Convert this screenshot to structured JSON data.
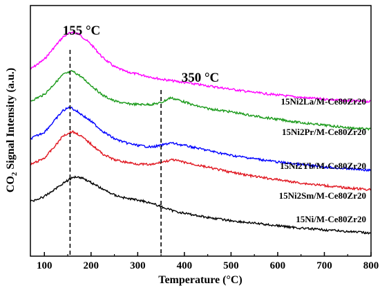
{
  "chart_data": {
    "type": "line",
    "xlabel": "Temperature (°C)",
    "ylabel": "CO2 Signal Intensity (a.u.)",
    "xlim": [
      70,
      800
    ],
    "xticks": [
      100,
      200,
      300,
      400,
      500,
      600,
      700,
      800
    ],
    "yticks": "none",
    "grid": false,
    "legend": "inline labels at right",
    "annotations": [
      {
        "text": "155 °C",
        "x": 155,
        "style": "dashed vertical line"
      },
      {
        "text": "350 °C",
        "x": 350,
        "style": "dashed vertical line"
      }
    ],
    "series": [
      {
        "name": "15Ni2La/M-Ce80Zr20",
        "color": "#ff00ff",
        "points": [
          [
            70,
            0.55
          ],
          [
            100,
            0.67
          ],
          [
            125,
            0.84
          ],
          [
            140,
            0.94
          ],
          [
            160,
            1.0
          ],
          [
            175,
            0.97
          ],
          [
            200,
            0.85
          ],
          [
            225,
            0.69
          ],
          [
            250,
            0.58
          ],
          [
            275,
            0.52
          ],
          [
            300,
            0.49
          ],
          [
            350,
            0.43
          ],
          [
            400,
            0.39
          ],
          [
            450,
            0.35
          ],
          [
            500,
            0.31
          ],
          [
            550,
            0.27
          ],
          [
            600,
            0.24
          ],
          [
            650,
            0.21
          ],
          [
            700,
            0.19
          ],
          [
            750,
            0.17
          ],
          [
            800,
            0.16
          ]
        ]
      },
      {
        "name": "15Ni2Pr/M-Ce80Zr20",
        "color": "#1a9a1a",
        "points": [
          [
            70,
            0.6
          ],
          [
            100,
            0.68
          ],
          [
            125,
            0.83
          ],
          [
            140,
            0.92
          ],
          [
            160,
            0.96
          ],
          [
            175,
            0.91
          ],
          [
            200,
            0.79
          ],
          [
            225,
            0.67
          ],
          [
            250,
            0.6
          ],
          [
            275,
            0.57
          ],
          [
            300,
            0.56
          ],
          [
            330,
            0.56
          ],
          [
            350,
            0.58
          ],
          [
            370,
            0.64
          ],
          [
            390,
            0.61
          ],
          [
            420,
            0.55
          ],
          [
            450,
            0.51
          ],
          [
            500,
            0.47
          ],
          [
            550,
            0.42
          ],
          [
            600,
            0.38
          ],
          [
            650,
            0.34
          ],
          [
            700,
            0.31
          ],
          [
            750,
            0.28
          ],
          [
            800,
            0.26
          ]
        ]
      },
      {
        "name": "15Ni2Yb/M-Ce80Zr20",
        "color": "#0000ff",
        "points": [
          [
            70,
            0.58
          ],
          [
            100,
            0.66
          ],
          [
            125,
            0.82
          ],
          [
            140,
            0.92
          ],
          [
            155,
            0.96
          ],
          [
            170,
            0.91
          ],
          [
            200,
            0.79
          ],
          [
            225,
            0.67
          ],
          [
            250,
            0.58
          ],
          [
            275,
            0.53
          ],
          [
            300,
            0.5
          ],
          [
            330,
            0.48
          ],
          [
            350,
            0.5
          ],
          [
            370,
            0.53
          ],
          [
            400,
            0.5
          ],
          [
            450,
            0.44
          ],
          [
            500,
            0.38
          ],
          [
            550,
            0.34
          ],
          [
            600,
            0.3
          ],
          [
            650,
            0.27
          ],
          [
            700,
            0.24
          ],
          [
            750,
            0.22
          ],
          [
            800,
            0.2
          ]
        ]
      },
      {
        "name": "15Ni2Sm/M-Ce80Zr20",
        "color": "#e0151f",
        "points": [
          [
            70,
            0.55
          ],
          [
            100,
            0.63
          ],
          [
            125,
            0.79
          ],
          [
            140,
            0.9
          ],
          [
            160,
            0.95
          ],
          [
            175,
            0.91
          ],
          [
            200,
            0.8
          ],
          [
            225,
            0.68
          ],
          [
            250,
            0.61
          ],
          [
            275,
            0.58
          ],
          [
            300,
            0.56
          ],
          [
            330,
            0.55
          ],
          [
            350,
            0.58
          ],
          [
            375,
            0.61
          ],
          [
            400,
            0.58
          ],
          [
            450,
            0.52
          ],
          [
            500,
            0.46
          ],
          [
            550,
            0.41
          ],
          [
            600,
            0.37
          ],
          [
            650,
            0.33
          ],
          [
            700,
            0.3
          ],
          [
            750,
            0.27
          ],
          [
            800,
            0.25
          ]
        ]
      },
      {
        "name": "15Ni/M-Ce80Zr20",
        "color": "#000000",
        "points": [
          [
            70,
            0.44
          ],
          [
            100,
            0.5
          ],
          [
            125,
            0.6
          ],
          [
            145,
            0.68
          ],
          [
            165,
            0.74
          ],
          [
            180,
            0.73
          ],
          [
            200,
            0.67
          ],
          [
            225,
            0.59
          ],
          [
            250,
            0.52
          ],
          [
            275,
            0.48
          ],
          [
            300,
            0.46
          ],
          [
            325,
            0.43
          ],
          [
            350,
            0.38
          ],
          [
            375,
            0.33
          ],
          [
            400,
            0.3
          ],
          [
            450,
            0.25
          ],
          [
            500,
            0.21
          ],
          [
            550,
            0.18
          ],
          [
            600,
            0.15
          ],
          [
            650,
            0.12
          ],
          [
            700,
            0.1
          ],
          [
            750,
            0.08
          ],
          [
            800,
            0.06
          ]
        ]
      }
    ]
  },
  "colors": {
    "background": "#ffffff",
    "axis": "#000000",
    "dashed_lines": "#000000"
  }
}
